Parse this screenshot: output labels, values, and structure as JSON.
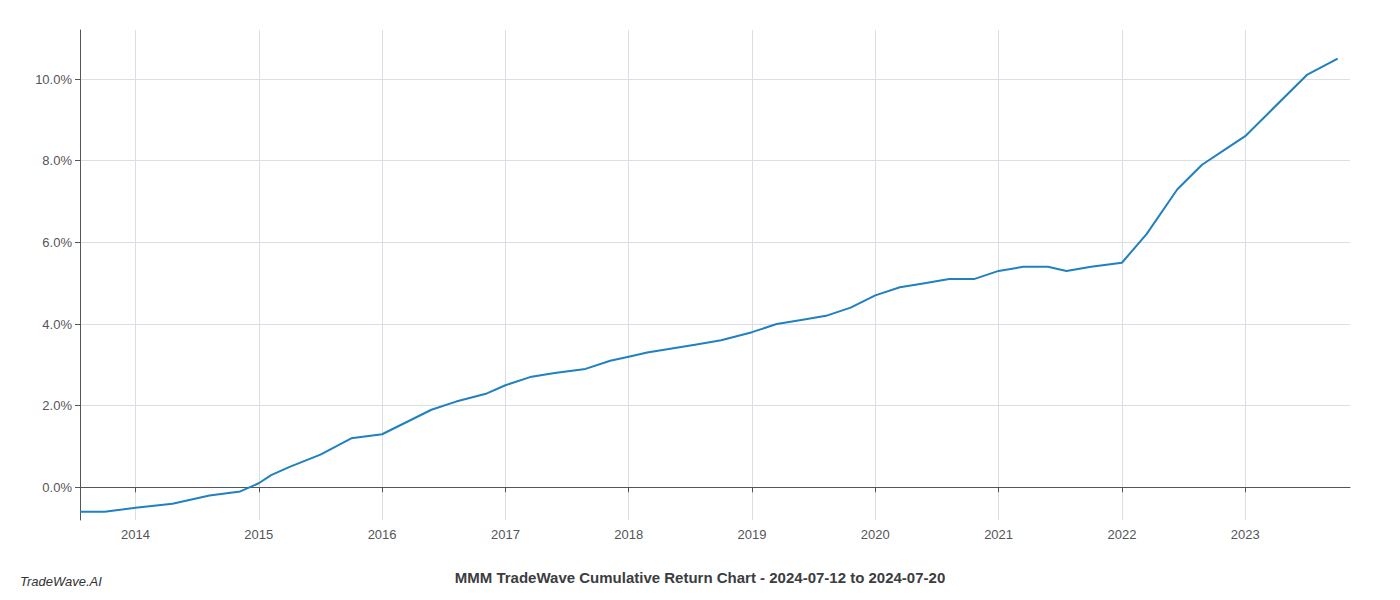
{
  "chart_data": {
    "type": "line",
    "title": "MMM TradeWave Cumulative Return Chart - 2024-07-12 to 2024-07-20",
    "annotations": [
      "TradeWave.AI"
    ],
    "x": [
      2013.55,
      2013.75,
      2014.0,
      2014.3,
      2014.6,
      2014.85,
      2015.0,
      2015.1,
      2015.25,
      2015.5,
      2015.75,
      2016.0,
      2016.2,
      2016.4,
      2016.6,
      2016.85,
      2017.0,
      2017.2,
      2017.4,
      2017.65,
      2017.85,
      2018.0,
      2018.15,
      2018.35,
      2018.55,
      2018.75,
      2019.0,
      2019.2,
      2019.4,
      2019.6,
      2019.8,
      2020.0,
      2020.2,
      2020.4,
      2020.6,
      2020.8,
      2021.0,
      2021.2,
      2021.4,
      2021.55,
      2021.75,
      2022.0,
      2022.2,
      2022.45,
      2022.65,
      2022.85,
      2023.0,
      2023.2,
      2023.5,
      2023.75
    ],
    "values": [
      -0.006,
      -0.006,
      -0.005,
      -0.004,
      -0.002,
      -0.001,
      0.001,
      0.003,
      0.005,
      0.008,
      0.012,
      0.013,
      0.016,
      0.019,
      0.021,
      0.023,
      0.025,
      0.027,
      0.028,
      0.029,
      0.031,
      0.032,
      0.033,
      0.034,
      0.035,
      0.036,
      0.038,
      0.04,
      0.041,
      0.042,
      0.044,
      0.047,
      0.049,
      0.05,
      0.051,
      0.051,
      0.053,
      0.054,
      0.054,
      0.053,
      0.054,
      0.055,
      0.062,
      0.073,
      0.079,
      0.083,
      0.086,
      0.092,
      0.101,
      0.105
    ],
    "color": "#2080c0",
    "xlim": [
      2013.55,
      2023.85
    ],
    "xticks": [
      2014,
      2015,
      2016,
      2017,
      2018,
      2019,
      2020,
      2021,
      2022,
      2023
    ],
    "ylim": [
      -0.008,
      0.112
    ],
    "yticks": [
      {
        "value": 0.0,
        "label": "0.0%"
      },
      {
        "value": 0.02,
        "label": "2.0%"
      },
      {
        "value": 0.04,
        "label": "4.0%"
      },
      {
        "value": 0.06,
        "label": "6.0%"
      },
      {
        "value": 0.08,
        "label": "8.0%"
      },
      {
        "value": 0.1,
        "label": "10.0%"
      }
    ],
    "grid": true
  }
}
